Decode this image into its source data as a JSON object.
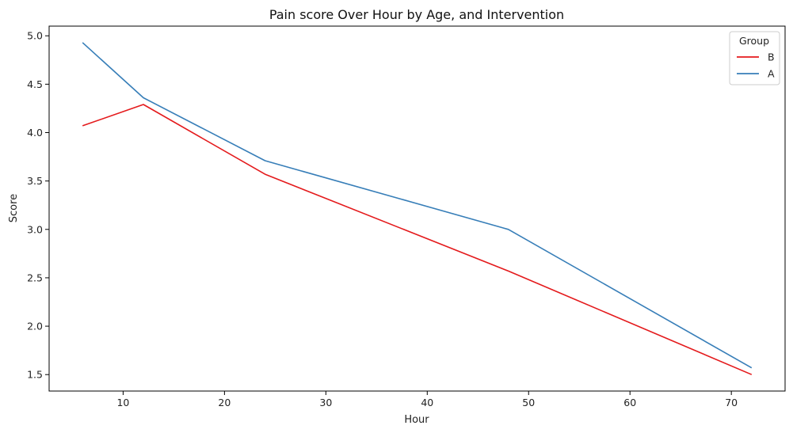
{
  "chart_data": {
    "type": "line",
    "title": "Pain score Over Hour by Age, and Intervention",
    "xlabel": "Hour",
    "ylabel": "Score",
    "xlim": [
      2.7,
      75.3
    ],
    "ylim": [
      1.33,
      5.1
    ],
    "xticks": [
      10,
      20,
      30,
      40,
      50,
      60,
      70
    ],
    "yticks": [
      "1.5",
      "2.0",
      "2.5",
      "3.0",
      "3.5",
      "4.0",
      "4.5",
      "5.0"
    ],
    "grid": false,
    "legend": {
      "title": "Group",
      "position": "top-right"
    },
    "x": [
      6,
      12,
      24,
      48,
      72
    ],
    "series": [
      {
        "name": "B",
        "color": "#e41a1c",
        "values": [
          4.07,
          4.29,
          3.57,
          2.57,
          1.5
        ]
      },
      {
        "name": "A",
        "color": "#377eb8",
        "values": [
          4.93,
          4.36,
          3.71,
          3.0,
          1.57
        ]
      }
    ]
  }
}
